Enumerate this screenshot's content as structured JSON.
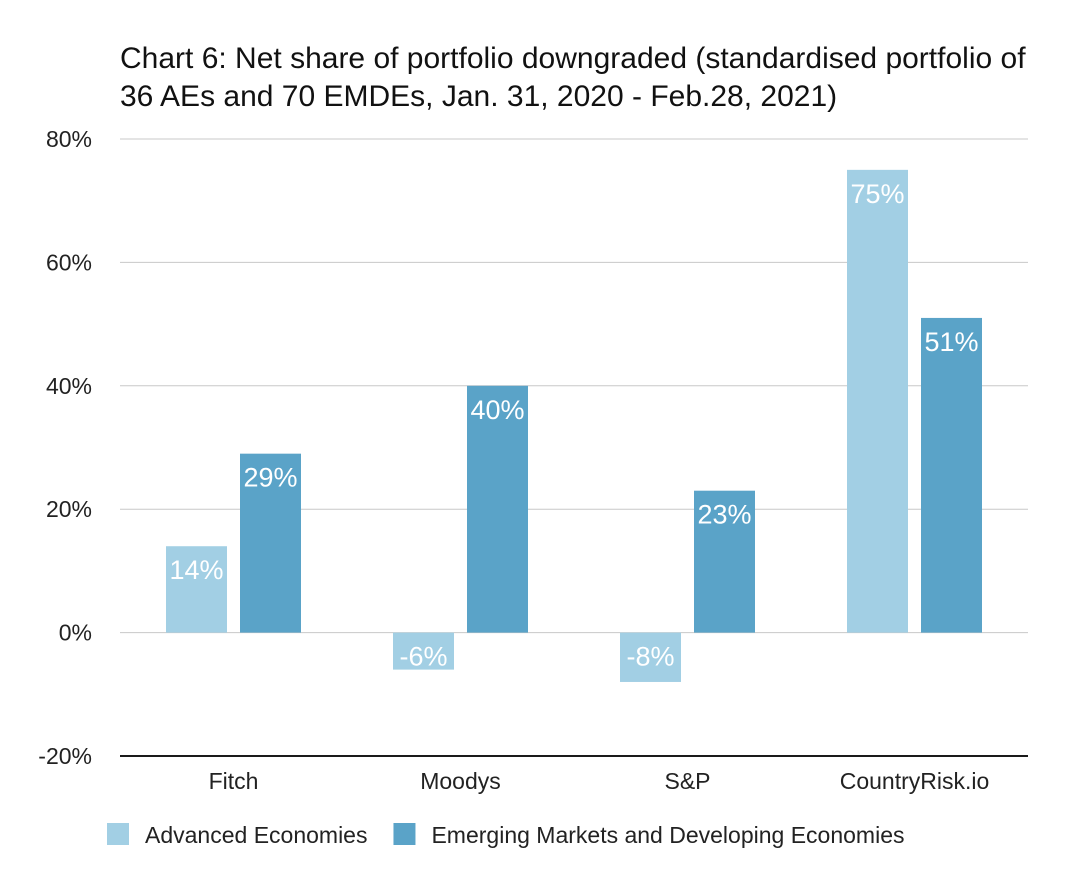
{
  "chart_data": {
    "type": "bar",
    "title": "Chart 6: Net share of portfolio downgraded (standardised portfolio of 36 AEs and 70 EMDEs, Jan. 31, 2020 - Feb.28, 2021)",
    "categories": [
      "Fitch",
      "Moodys",
      "S&P",
      "CountryRisk.io"
    ],
    "series": [
      {
        "name": "Advanced Economies",
        "color": "#a2cfe4",
        "values": [
          14,
          -6,
          -8,
          75
        ],
        "labels": [
          "14%",
          "-6%",
          "-8%",
          "75%"
        ]
      },
      {
        "name": "Emerging Markets and Developing Economies",
        "color": "#5aa3c8",
        "values": [
          29,
          40,
          23,
          51
        ],
        "labels": [
          "29%",
          "40%",
          "23%",
          "51%"
        ]
      }
    ],
    "ylim": [
      -20,
      80
    ],
    "yticks": [
      80,
      60,
      40,
      20,
      0,
      -20
    ],
    "ytick_labels": [
      "80%",
      "60%",
      "40%",
      "20%",
      "0%",
      "-20%"
    ],
    "xlabel": "",
    "ylabel": "",
    "grid": true,
    "legend_position": "bottom-left"
  }
}
